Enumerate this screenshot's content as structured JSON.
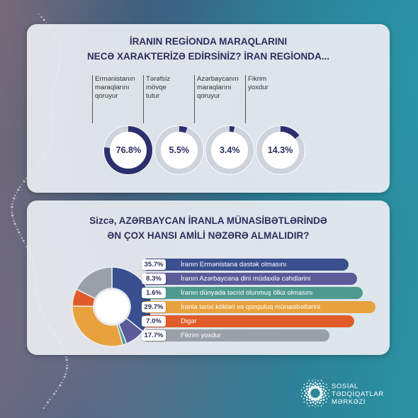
{
  "question1": {
    "title_line1": "İRANIN REGİONDA MARAQLARINI",
    "title_line2": "NECƏ XARAKTERİZƏ EDİRSİNİZ? İRAN REGİONDA..."
  },
  "question2": {
    "title_line1": "Sizcə, AZƏRBAYCAN İRANLA MÜNASİBƏTLƏRİNDƏ",
    "title_line2": "ƏN ÇOX HANSI AMİLİ NƏZƏRƏ ALMALIDIR?"
  },
  "colors": {
    "navy": "#2c2f6e",
    "track": "#cfd3db",
    "blue": "#3a4f8f",
    "purple": "#5b5b9a",
    "teal": "#4e9a8f",
    "orange": "#e8a23d",
    "red": "#e05c2a",
    "gray": "#9aa0a8"
  },
  "chart_data": [
    {
      "type": "donut",
      "items": [
        {
          "label_lines": [
            "Ermənistanın",
            "maraqlarını",
            "qoruyur"
          ],
          "value": 76.8,
          "value_label": "76.8%"
        },
        {
          "label_lines": [
            "Tərəfsiz",
            "mövqe",
            "tutur"
          ],
          "value": 5.5,
          "value_label": "5.5%"
        },
        {
          "label_lines": [
            "Azərbaycanın",
            "maraqlarını",
            "qoruyur"
          ],
          "value": 3.4,
          "value_label": "3.4%"
        },
        {
          "label_lines": [
            "Fikrim",
            "yoxdur"
          ],
          "value": 14.3,
          "value_label": "14.3%"
        }
      ]
    },
    {
      "type": "pie",
      "items": [
        {
          "label": "İranın Ermənistana dəstək olmasını",
          "value": 35.7,
          "value_label": "35.7%",
          "color": "#3a4f8f"
        },
        {
          "label": "İranın Azərbaycana dini müdaxilə cəhdlərini",
          "value": 8.3,
          "value_label": "8.3%",
          "color": "#5b5b9a"
        },
        {
          "label": "İranın dünyada təcrid olunmuş ölkə olmasını",
          "value": 1.6,
          "value_label": "1.6%",
          "color": "#4e9a8f"
        },
        {
          "label": "İranla tarixi kökləri və qonşuluq münasibətlərini",
          "value": 29.7,
          "value_label": "29.7%",
          "color": "#e8a23d"
        },
        {
          "label": "Digər",
          "value": 7.0,
          "value_label": "7.0%",
          "color": "#e05c2a"
        },
        {
          "label": "Fikrim yoxdur",
          "value": 17.7,
          "value_label": "17.7%",
          "color": "#9aa0a8"
        }
      ]
    }
  ],
  "logo": {
    "line1": "SOSİAL",
    "line2": "TƏDQİQATLAR",
    "line3": "MƏRKƏZİ"
  }
}
